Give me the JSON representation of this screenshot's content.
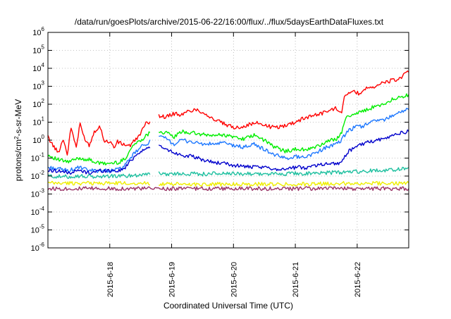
{
  "chart_data": {
    "type": "line",
    "title": "/data/run/goesPlots/archive/2015-06-22/16:00/flux/../flux/5daysEarthDataFluxes.txt",
    "xlabel": "Coordinated Universal Time (UTC)",
    "ylabel": {
      "prefix": "protons/cm",
      "sup": "2",
      "suffix": "-s-sr-MeV"
    },
    "yscale": "log",
    "ylim": [
      1e-06,
      1000000.0
    ],
    "xlim": [
      "2015-06-17T00:00",
      "2015-06-22T20:00"
    ],
    "grid": true,
    "y_ticks": [
      {
        "value": 1e-06,
        "base": "10",
        "exp": "-6"
      },
      {
        "value": 1e-05,
        "base": "10",
        "exp": "-5"
      },
      {
        "value": 0.0001,
        "base": "10",
        "exp": "-4"
      },
      {
        "value": 0.001,
        "base": "10",
        "exp": "-3"
      },
      {
        "value": 0.01,
        "base": "10",
        "exp": "-2"
      },
      {
        "value": 0.1,
        "base": "10",
        "exp": "-1"
      },
      {
        "value": 1.0,
        "base": "10",
        "exp": "0"
      },
      {
        "value": 10.0,
        "base": "10",
        "exp": "1"
      },
      {
        "value": 100.0,
        "base": "10",
        "exp": "2"
      },
      {
        "value": 1000.0,
        "base": "10",
        "exp": "3"
      },
      {
        "value": 10000.0,
        "base": "10",
        "exp": "4"
      },
      {
        "value": 100000.0,
        "base": "10",
        "exp": "5"
      },
      {
        "value": 1000000.0,
        "base": "10",
        "exp": "6"
      }
    ],
    "x_ticks": [
      {
        "value": "2015-06-18T00:00",
        "label": "2015-6-18"
      },
      {
        "value": "2015-06-19T00:00",
        "label": "2015-6-19"
      },
      {
        "value": "2015-06-20T00:00",
        "label": "2015-6-20"
      },
      {
        "value": "2015-06-21T00:00",
        "label": "2015-6-21"
      },
      {
        "value": "2015-06-22T00:00",
        "label": "2015-6-22"
      }
    ],
    "series": [
      {
        "color": "#ff0000",
        "x": [
          "2015-06-17T00:00",
          "2015-06-17T02:00",
          "2015-06-17T04:00",
          "2015-06-17T06:00",
          "2015-06-17T07:30",
          "2015-06-17T09:00",
          "2015-06-17T11:00",
          "2015-06-17T12:30",
          "2015-06-17T14:00",
          "2015-06-17T16:00",
          "2015-06-17T18:00",
          "2015-06-17T20:00",
          "2015-06-17T22:00",
          "2015-06-18T00:00",
          "2015-06-18T02:00",
          "2015-06-18T03:00",
          "2015-06-18T05:00",
          "2015-06-18T08:00",
          "2015-06-18T11:00",
          "2015-06-18T14:00",
          "2015-06-18T16:00",
          null,
          "2015-06-18T19:00",
          "2015-06-18T22:00",
          "2015-06-19T01:00",
          "2015-06-19T04:00",
          "2015-06-19T07:00",
          "2015-06-19T10:00",
          "2015-06-19T13:00",
          "2015-06-19T16:00",
          "2015-06-19T19:00",
          "2015-06-19T22:00",
          "2015-06-20T01:00",
          "2015-06-20T04:00",
          "2015-06-20T07:00",
          "2015-06-20T10:00",
          "2015-06-20T13:00",
          "2015-06-20T16:00",
          "2015-06-20T19:00",
          "2015-06-20T22:00",
          "2015-06-21T01:00",
          "2015-06-21T04:00",
          "2015-06-21T07:00",
          "2015-06-21T10:00",
          "2015-06-21T13:00",
          "2015-06-21T16:00",
          "2015-06-21T18:00",
          "2015-06-21T19:00",
          "2015-06-21T22:00",
          "2015-06-22T01:00",
          "2015-06-22T04:00",
          "2015-06-22T07:00",
          "2015-06-22T10:00",
          "2015-06-22T13:00",
          "2015-06-22T16:00",
          "2015-06-22T18:00",
          "2015-06-22T20:00"
        ],
        "y": [
          1.5,
          0.5,
          0.2,
          1.2,
          0.15,
          5,
          0.4,
          8,
          1.5,
          0.5,
          3,
          6,
          0.9,
          0.8,
          0.4,
          0.8,
          0.6,
          0.5,
          1.5,
          8,
          12,
          null,
          22,
          20,
          30,
          25,
          45,
          50,
          30,
          15,
          10,
          6,
          5,
          6,
          8,
          9,
          6,
          5,
          6,
          8,
          12,
          18,
          25,
          30,
          45,
          60,
          40,
          300,
          500,
          400,
          900,
          1000,
          1500,
          2000,
          2500,
          4000,
          6000
        ]
      },
      {
        "color": "#00ee00",
        "x": [
          "2015-06-17T00:00",
          "2015-06-17T04:00",
          "2015-06-17T08:00",
          "2015-06-17T12:00",
          "2015-06-17T16:00",
          "2015-06-17T20:00",
          "2015-06-18T00:00",
          "2015-06-18T04:00",
          "2015-06-18T06:00",
          "2015-06-18T09:00",
          "2015-06-18T12:00",
          "2015-06-18T16:00",
          null,
          "2015-06-18T19:00",
          "2015-06-18T22:00",
          "2015-06-19T01:00",
          "2015-06-19T04:00",
          "2015-06-19T08:00",
          "2015-06-19T12:00",
          "2015-06-19T16:00",
          "2015-06-19T20:00",
          "2015-06-20T00:00",
          "2015-06-20T04:00",
          "2015-06-20T08:00",
          "2015-06-20T12:00",
          "2015-06-20T16:00",
          "2015-06-20T20:00",
          "2015-06-21T00:00",
          "2015-06-21T04:00",
          "2015-06-21T08:00",
          "2015-06-21T12:00",
          "2015-06-21T16:00",
          "2015-06-21T18:00",
          "2015-06-21T20:00",
          "2015-06-21T23:00",
          "2015-06-22T02:00",
          "2015-06-22T05:00",
          "2015-06-22T08:00",
          "2015-06-22T11:00",
          "2015-06-22T14:00",
          "2015-06-22T17:00",
          "2015-06-22T20:00"
        ],
        "y": [
          0.15,
          0.08,
          0.06,
          0.1,
          0.08,
          0.05,
          0.05,
          0.06,
          0.1,
          0.5,
          1.0,
          3,
          null,
          3,
          2.5,
          1.5,
          3,
          2.5,
          2,
          1.8,
          2,
          1.5,
          1.2,
          1.8,
          1.0,
          0.4,
          0.25,
          0.3,
          0.3,
          0.4,
          0.8,
          1.2,
          3,
          20,
          30,
          40,
          60,
          80,
          120,
          200,
          250,
          350
        ]
      },
      {
        "color": "#1e78ff",
        "x": [
          "2015-06-17T00:00",
          "2015-06-17T04:00",
          "2015-06-17T08:00",
          "2015-06-17T12:00",
          "2015-06-17T16:00",
          "2015-06-17T20:00",
          "2015-06-18T00:00",
          "2015-06-18T04:00",
          "2015-06-18T06:00",
          "2015-06-18T09:00",
          "2015-06-18T12:00",
          "2015-06-18T16:00",
          null,
          "2015-06-18T19:00",
          "2015-06-18T22:00",
          "2015-06-19T01:00",
          "2015-06-19T04:00",
          "2015-06-19T08:00",
          "2015-06-19T12:00",
          "2015-06-19T16:00",
          "2015-06-19T20:00",
          "2015-06-20T00:00",
          "2015-06-20T04:00",
          "2015-06-20T08:00",
          "2015-06-20T12:00",
          "2015-06-20T16:00",
          "2015-06-20T20:00",
          "2015-06-21T00:00",
          "2015-06-21T04:00",
          "2015-06-21T08:00",
          "2015-06-21T12:00",
          "2015-06-21T16:00",
          "2015-06-21T18:00",
          "2015-06-21T20:00",
          "2015-06-21T23:00",
          "2015-06-22T02:00",
          "2015-06-22T05:00",
          "2015-06-22T08:00",
          "2015-06-22T11:00",
          "2015-06-22T14:00",
          "2015-06-22T17:00",
          "2015-06-22T20:00"
        ],
        "y": [
          0.03,
          0.025,
          0.02,
          0.03,
          0.02,
          0.02,
          0.02,
          0.025,
          0.04,
          0.15,
          0.4,
          0.9,
          null,
          1.5,
          1.2,
          0.6,
          1.0,
          0.8,
          0.6,
          0.6,
          0.7,
          0.5,
          0.4,
          0.6,
          0.3,
          0.15,
          0.1,
          0.12,
          0.12,
          0.2,
          0.4,
          0.6,
          1.0,
          3,
          5,
          6,
          10,
          12,
          15,
          25,
          40,
          50
        ]
      },
      {
        "color": "#0000cc",
        "x": [
          "2015-06-17T00:00",
          "2015-06-17T04:00",
          "2015-06-17T08:00",
          "2015-06-17T12:00",
          "2015-06-17T16:00",
          "2015-06-17T20:00",
          "2015-06-18T00:00",
          "2015-06-18T04:00",
          "2015-06-18T06:00",
          "2015-06-18T09:00",
          "2015-06-18T12:00",
          "2015-06-18T16:00",
          null,
          "2015-06-18T19:00",
          "2015-06-18T22:00",
          "2015-06-19T01:00",
          "2015-06-19T04:00",
          "2015-06-19T08:00",
          "2015-06-19T12:00",
          "2015-06-19T16:00",
          "2015-06-19T20:00",
          "2015-06-20T00:00",
          "2015-06-20T04:00",
          "2015-06-20T08:00",
          "2015-06-20T12:00",
          "2015-06-20T16:00",
          "2015-06-20T20:00",
          "2015-06-21T00:00",
          "2015-06-21T04:00",
          "2015-06-21T08:00",
          "2015-06-21T12:00",
          "2015-06-21T16:00",
          "2015-06-21T18:00",
          "2015-06-21T20:00",
          "2015-06-21T23:00",
          "2015-06-22T02:00",
          "2015-06-22T05:00",
          "2015-06-22T08:00",
          "2015-06-22T11:00",
          "2015-06-22T14:00",
          "2015-06-22T17:00",
          "2015-06-22T20:00"
        ],
        "y": [
          0.02,
          0.02,
          0.015,
          0.02,
          0.015,
          0.02,
          0.02,
          0.02,
          0.03,
          0.1,
          0.25,
          0.4,
          null,
          0.45,
          0.3,
          0.2,
          0.15,
          0.12,
          0.08,
          0.06,
          0.05,
          0.04,
          0.035,
          0.03,
          0.03,
          0.025,
          0.025,
          0.03,
          0.03,
          0.04,
          0.05,
          0.05,
          0.06,
          0.2,
          0.4,
          0.6,
          0.8,
          1.0,
          1.2,
          2,
          2.5,
          3
        ]
      },
      {
        "color": "#20c0a0",
        "x": [
          "2015-06-17T00:00",
          "2015-06-17T06:00",
          "2015-06-17T12:00",
          "2015-06-17T18:00",
          "2015-06-18T00:00",
          "2015-06-18T06:00",
          "2015-06-18T12:00",
          "2015-06-18T16:00",
          null,
          "2015-06-18T19:00",
          "2015-06-19T00:00",
          "2015-06-19T06:00",
          "2015-06-19T12:00",
          "2015-06-19T18:00",
          "2015-06-20T00:00",
          "2015-06-20T06:00",
          "2015-06-20T12:00",
          "2015-06-20T18:00",
          "2015-06-21T00:00",
          "2015-06-21T06:00",
          "2015-06-21T12:00",
          "2015-06-21T18:00",
          "2015-06-22T00:00",
          "2015-06-22T06:00",
          "2015-06-22T12:00",
          "2015-06-22T18:00",
          "2015-06-22T20:00"
        ],
        "y": [
          0.01,
          0.009,
          0.01,
          0.009,
          0.01,
          0.01,
          0.012,
          0.015,
          null,
          0.014,
          0.013,
          0.014,
          0.013,
          0.014,
          0.013,
          0.014,
          0.013,
          0.013,
          0.014,
          0.014,
          0.015,
          0.016,
          0.018,
          0.02,
          0.022,
          0.025,
          0.03
        ]
      },
      {
        "color": "#eeee00",
        "x": [
          "2015-06-17T00:00",
          "2015-06-18T00:00",
          "2015-06-18T16:00",
          null,
          "2015-06-18T19:00",
          "2015-06-20T00:00",
          "2015-06-21T00:00",
          "2015-06-22T00:00",
          "2015-06-22T20:00"
        ],
        "y": [
          0.004,
          0.004,
          0.004,
          null,
          0.0035,
          0.0035,
          0.0035,
          0.004,
          0.004
        ]
      },
      {
        "color": "#993366",
        "x": [
          "2015-06-17T00:00",
          "2015-06-18T00:00",
          "2015-06-19T00:00",
          "2015-06-20T00:00",
          "2015-06-21T00:00",
          "2015-06-22T00:00",
          "2015-06-22T20:00"
        ],
        "y": [
          0.002,
          0.002,
          0.002,
          0.002,
          0.002,
          0.002,
          0.002
        ]
      }
    ]
  }
}
